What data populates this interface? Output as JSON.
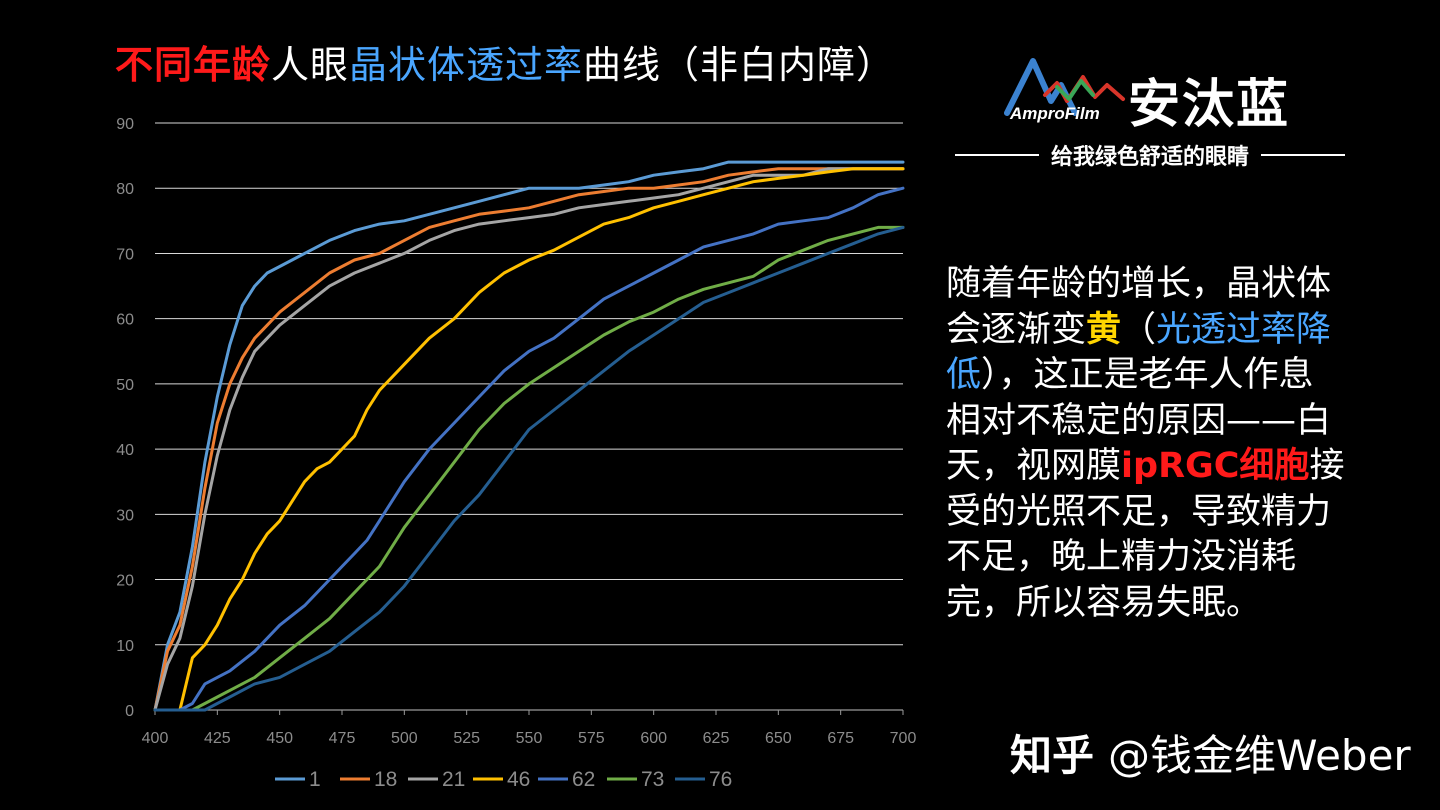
{
  "title": {
    "part1": "不同年龄",
    "part2": "人眼",
    "part3": "晶状体透过率",
    "part4": "曲线（非白内障）"
  },
  "logo": {
    "brand": "AmproFilm",
    "name": "安汰蓝",
    "slogan": "给我绿色舒适的眼睛"
  },
  "description": {
    "s1": "随着年龄的增长，晶状体会逐渐变",
    "s2": "黄",
    "s3": "（",
    "s4": "光透过率降低",
    "s5": "），这正是老年人作息相对不稳定的原因——白天，视网膜",
    "s6": "ipRGC细胞",
    "s7": "接受的光照不足，导致精力不足，晚上精力没消耗完，所以容易失眠。"
  },
  "watermark": {
    "brand": "知乎",
    "handle": "@钱金维Weber"
  },
  "chart_data": {
    "type": "line",
    "title": "不同年龄人眼晶状体透过率曲线（非白内障）",
    "xlabel": "",
    "ylabel": "",
    "xlim": [
      400,
      700
    ],
    "ylim": [
      0,
      90
    ],
    "xticks": [
      400,
      425,
      450,
      475,
      500,
      525,
      550,
      575,
      600,
      625,
      650,
      675,
      700
    ],
    "yticks": [
      0,
      10,
      20,
      30,
      40,
      50,
      60,
      70,
      80,
      90
    ],
    "grid": true,
    "legend_position": "bottom",
    "series": [
      {
        "name": "1",
        "color": "#5b9bd5",
        "x": [
          400,
          405,
          410,
          415,
          420,
          425,
          430,
          435,
          440,
          445,
          450,
          455,
          460,
          470,
          480,
          490,
          500,
          510,
          520,
          530,
          540,
          550,
          560,
          570,
          580,
          590,
          600,
          610,
          620,
          630,
          640,
          650,
          660,
          670,
          680,
          690,
          700
        ],
        "y": [
          0,
          10,
          15,
          25,
          38,
          48,
          56,
          62,
          65,
          67,
          68,
          69,
          70,
          72,
          73.5,
          74.5,
          75,
          76,
          77,
          78,
          79,
          80,
          80,
          80,
          80.5,
          81,
          82,
          82.5,
          83,
          84,
          84,
          84,
          84,
          84,
          84,
          84,
          84
        ]
      },
      {
        "name": "18",
        "color": "#ed7d31",
        "x": [
          400,
          405,
          410,
          415,
          420,
          425,
          430,
          435,
          440,
          445,
          450,
          460,
          470,
          480,
          490,
          500,
          510,
          520,
          530,
          540,
          550,
          560,
          570,
          580,
          590,
          600,
          610,
          620,
          630,
          640,
          650,
          660,
          670,
          680,
          690,
          700
        ],
        "y": [
          0,
          9,
          13,
          22,
          34,
          44,
          50,
          54,
          57,
          59,
          61,
          64,
          67,
          69,
          70,
          72,
          74,
          75,
          76,
          76.5,
          77,
          78,
          79,
          79.5,
          80,
          80,
          80.5,
          81,
          82,
          82.5,
          83,
          83,
          83,
          83,
          83,
          83
        ]
      },
      {
        "name": "21",
        "color": "#a5a5a5",
        "x": [
          400,
          405,
          410,
          415,
          420,
          425,
          430,
          435,
          440,
          445,
          450,
          460,
          470,
          480,
          490,
          500,
          510,
          520,
          530,
          540,
          550,
          560,
          570,
          580,
          590,
          600,
          610,
          620,
          630,
          640,
          650,
          660,
          670,
          680,
          690,
          700
        ],
        "y": [
          0,
          7,
          11,
          19,
          30,
          39,
          46,
          51,
          55,
          57,
          59,
          62,
          65,
          67,
          68.5,
          70,
          72,
          73.5,
          74.5,
          75,
          75.5,
          76,
          77,
          77.5,
          78,
          78.5,
          79,
          80,
          81,
          82,
          82,
          82,
          83,
          83,
          83,
          83
        ]
      },
      {
        "name": "46",
        "color": "#ffc000",
        "x": [
          400,
          405,
          410,
          415,
          420,
          425,
          430,
          435,
          440,
          445,
          450,
          455,
          460,
          465,
          470,
          475,
          480,
          485,
          490,
          500,
          510,
          520,
          530,
          540,
          550,
          560,
          570,
          580,
          590,
          600,
          610,
          620,
          630,
          640,
          650,
          660,
          670,
          680,
          690,
          700
        ],
        "y": [
          0,
          0,
          0,
          8,
          10,
          13,
          17,
          20,
          24,
          27,
          29,
          32,
          35,
          37,
          38,
          40,
          42,
          46,
          49,
          53,
          57,
          60,
          64,
          67,
          69,
          70.5,
          72.5,
          74.5,
          75.5,
          77,
          78,
          79,
          80,
          81,
          81.5,
          82,
          82.5,
          83,
          83,
          83
        ]
      },
      {
        "name": "62",
        "color": "#4472c4",
        "x": [
          400,
          405,
          410,
          415,
          420,
          425,
          430,
          440,
          450,
          460,
          470,
          475,
          480,
          485,
          490,
          500,
          510,
          520,
          530,
          540,
          550,
          560,
          570,
          580,
          590,
          600,
          610,
          620,
          630,
          640,
          650,
          660,
          670,
          680,
          690,
          700
        ],
        "y": [
          0,
          0,
          0,
          1,
          4,
          5,
          6,
          9,
          13,
          16,
          20,
          22,
          24,
          26,
          29,
          35,
          40,
          44,
          48,
          52,
          55,
          57,
          60,
          63,
          65,
          67,
          69,
          71,
          72,
          73,
          74.5,
          75,
          75.5,
          77,
          79,
          80
        ]
      },
      {
        "name": "73",
        "color": "#70ad47",
        "x": [
          400,
          405,
          410,
          415,
          420,
          425,
          430,
          440,
          450,
          460,
          470,
          480,
          490,
          500,
          510,
          520,
          530,
          540,
          550,
          560,
          570,
          580,
          590,
          600,
          610,
          620,
          630,
          640,
          650,
          660,
          670,
          680,
          690,
          700
        ],
        "y": [
          0,
          0,
          0,
          0,
          1,
          2,
          3,
          5,
          8,
          11,
          14,
          18,
          22,
          28,
          33,
          38,
          43,
          47,
          50,
          52.5,
          55,
          57.5,
          59.5,
          61,
          63,
          64.5,
          65.5,
          66.5,
          69,
          70.5,
          72,
          73,
          74,
          74
        ]
      },
      {
        "name": "76",
        "color": "#255e91",
        "x": [
          400,
          405,
          410,
          415,
          420,
          425,
          430,
          440,
          450,
          460,
          470,
          480,
          490,
          500,
          510,
          520,
          530,
          540,
          550,
          560,
          570,
          580,
          590,
          600,
          610,
          620,
          630,
          640,
          650,
          660,
          670,
          680,
          690,
          700
        ],
        "y": [
          0,
          0,
          0,
          0,
          0,
          1,
          2,
          4,
          5,
          7,
          9,
          12,
          15,
          19,
          24,
          29,
          33,
          38,
          43,
          46,
          49,
          52,
          55,
          57.5,
          60,
          62.5,
          64,
          65.5,
          67,
          68.5,
          70,
          71.5,
          73,
          74
        ]
      }
    ]
  }
}
